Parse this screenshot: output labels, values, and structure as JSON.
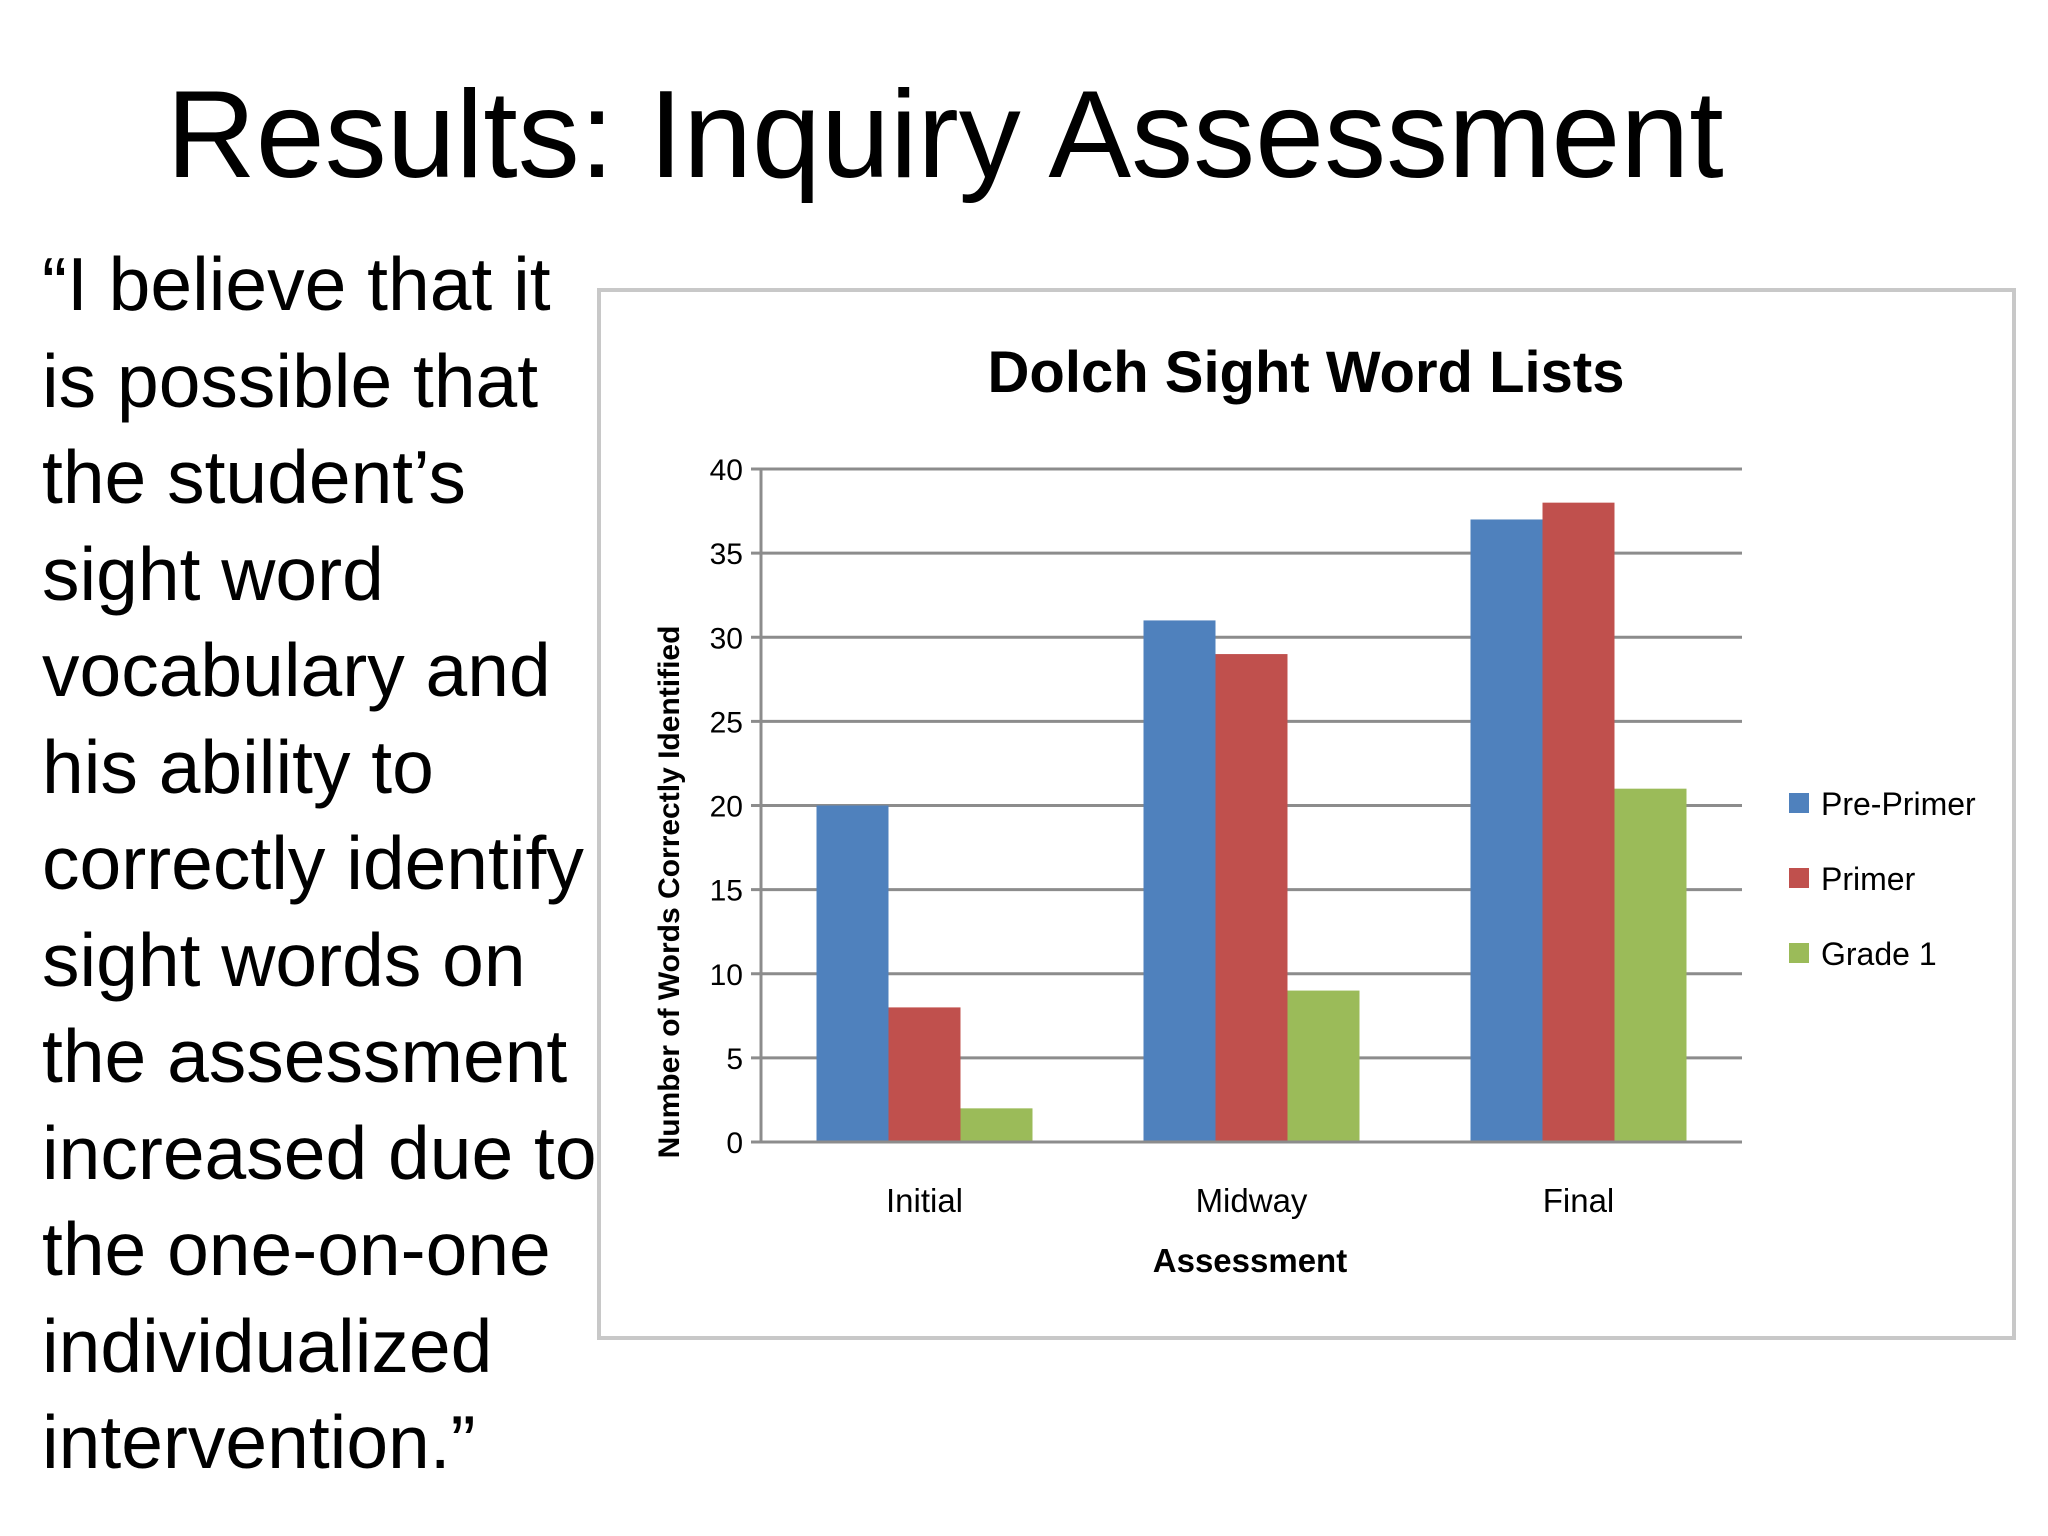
{
  "slide": {
    "title": "Results: Inquiry Assessment",
    "quote_lines": [
      "“I believe that it",
      "is possible that",
      "the student’s",
      "sight word",
      "vocabulary and",
      "his ability to",
      "correctly identify",
      "sight words on",
      "the assessment",
      "increased due to",
      "the one-on-one",
      "individualized",
      "intervention.”"
    ]
  },
  "chart_data": {
    "type": "bar",
    "title": "Dolch Sight Word Lists",
    "xlabel": "Assessment",
    "ylabel": "Number of Words Correctly Identified",
    "categories": [
      "Initial",
      "Midway",
      "Final"
    ],
    "ylim": [
      0,
      40
    ],
    "yticks": [
      0,
      5,
      10,
      15,
      20,
      25,
      30,
      35,
      40
    ],
    "grid": true,
    "legend_position": "right",
    "series": [
      {
        "name": "Pre-Primer",
        "color": "#4f81bd",
        "values": [
          20,
          31,
          37
        ]
      },
      {
        "name": "Primer",
        "color": "#c0504d",
        "values": [
          8,
          29,
          38
        ]
      },
      {
        "name": "Grade 1",
        "color": "#9bbb59",
        "values": [
          2,
          9,
          21
        ]
      }
    ]
  }
}
